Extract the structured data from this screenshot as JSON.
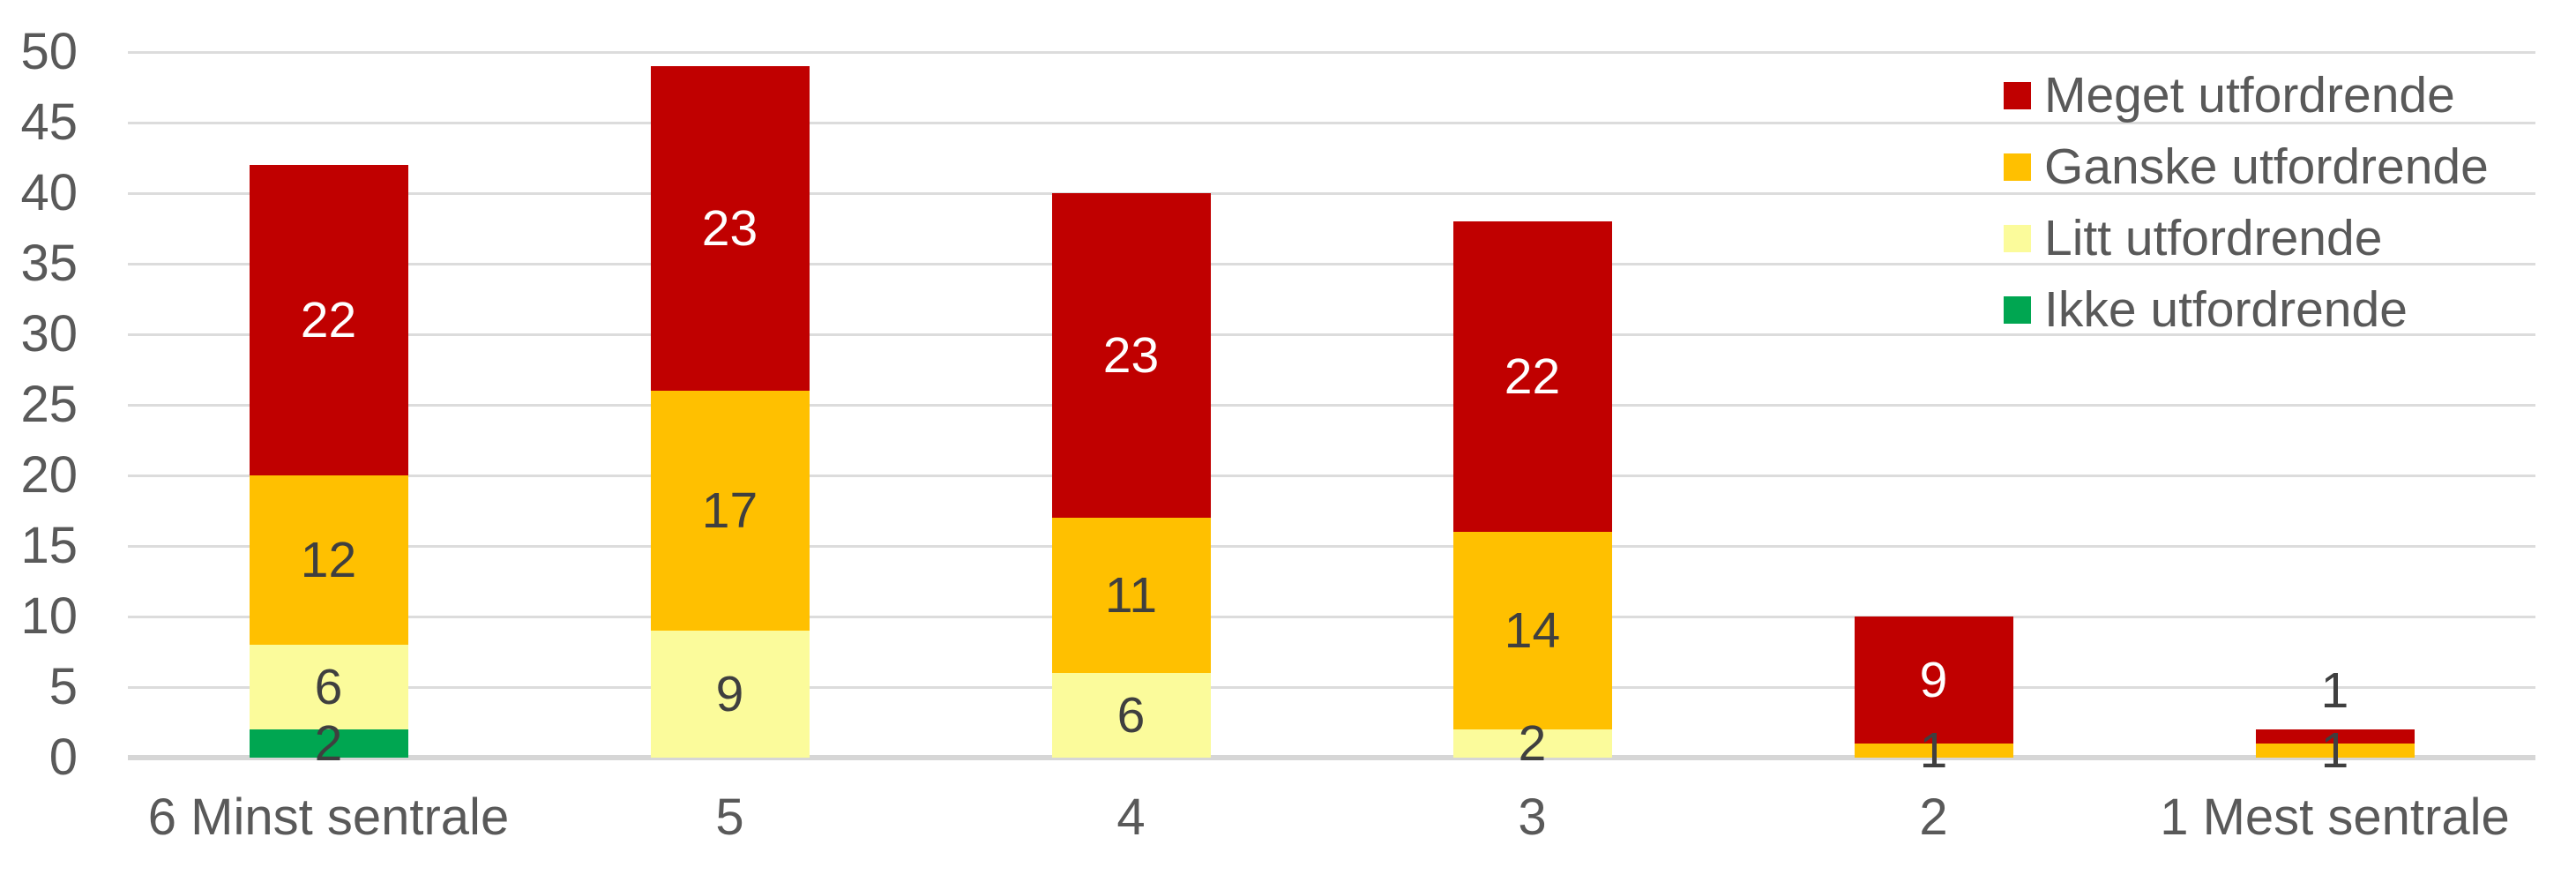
{
  "chart_data": {
    "type": "bar",
    "subtype": "stacked-vertical",
    "title": "",
    "xlabel": "",
    "ylabel": "",
    "categories": [
      "6 Minst sentrale",
      "5",
      "4",
      "3",
      "2",
      "1 Mest sentrale"
    ],
    "series": [
      {
        "name": "Ikke utfordrende",
        "color": "#00A651",
        "label_color": "#3F3F3F",
        "values": [
          2,
          0,
          0,
          0,
          0,
          0
        ]
      },
      {
        "name": "Litt utfordrende",
        "color": "#FBFB9B",
        "label_color": "#3F3F3F",
        "values": [
          6,
          9,
          6,
          2,
          0,
          0
        ]
      },
      {
        "name": "Ganske utfordrende",
        "color": "#FFC000",
        "label_color": "#3F3F3F",
        "values": [
          12,
          17,
          11,
          14,
          1,
          1
        ]
      },
      {
        "name": "Meget utfordrende",
        "color": "#C00000",
        "label_color": "#FFFFFF",
        "values": [
          22,
          23,
          23,
          22,
          9,
          1
        ]
      }
    ],
    "totals": [
      42,
      49,
      40,
      38,
      10,
      2
    ],
    "y_axis": {
      "min": 0,
      "max": 50,
      "step": 5,
      "tick_labels": [
        "0",
        "5",
        "10",
        "15",
        "20",
        "25",
        "30",
        "35",
        "40",
        "45",
        "50"
      ]
    },
    "grid": true,
    "gridline_color": "#DCDCDC",
    "baseline_color": "#D6D6D6",
    "axis_text_color": "#595959",
    "legend_position": "top-right",
    "legend_order_top_to_bottom": [
      "Meget utfordrende",
      "Ganske utfordrende",
      "Litt utfordrende",
      "Ikke utfordrende"
    ]
  }
}
